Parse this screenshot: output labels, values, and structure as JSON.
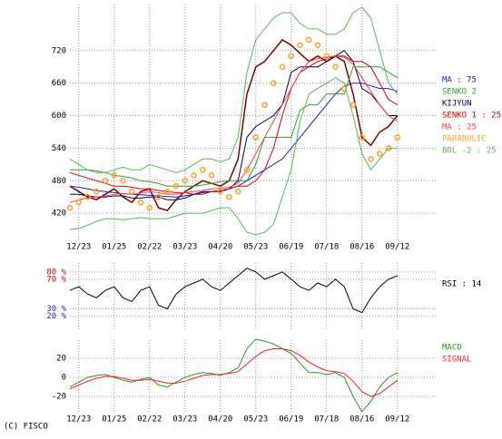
{
  "footer": "(C) FISCO",
  "chart_data": [
    {
      "type": "line",
      "categories": [
        null,
        "12/23",
        null,
        null,
        null,
        "01/25",
        null,
        null,
        null,
        "02/22",
        null,
        null,
        null,
        "03/23",
        null,
        null,
        null,
        "04/20",
        null,
        null,
        null,
        "05/23",
        null,
        null,
        null,
        "06/19",
        null,
        null,
        null,
        "07/18",
        null,
        null,
        null,
        "08/16",
        null,
        null,
        null,
        "09/12"
      ],
      "ylim": [
        370,
        805
      ],
      "yticks": [
        420,
        480,
        540,
        600,
        660,
        720
      ],
      "grid": true,
      "series": [
        {
          "color": "#800000",
          "values": [
            470,
            460,
            450,
            445,
            455,
            465,
            450,
            440,
            460,
            465,
            430,
            425,
            445,
            460,
            470,
            480,
            475,
            470,
            480,
            520,
            640,
            690,
            700,
            720,
            740,
            730,
            715,
            700,
            710,
            700,
            710,
            700,
            640,
            560,
            545,
            570,
            580,
            600
          ]
        },
        {
          "name": "MA : 75",
          "color": "#2020c0",
          "values": [
            470,
            468,
            465,
            462,
            460,
            458,
            456,
            455,
            454,
            453,
            452,
            451,
            450,
            452,
            455,
            458,
            460,
            462,
            465,
            470,
            480,
            490,
            500,
            510,
            520,
            540,
            560,
            580,
            600,
            620,
            640,
            655,
            660,
            660,
            655,
            650,
            650,
            645
          ]
        },
        {
          "name": "SENKO 2",
          "color": "#30a030",
          "values": [
            500,
            500,
            500,
            498,
            495,
            490,
            488,
            485,
            480,
            478,
            475,
            470,
            470,
            470,
            470,
            472,
            475,
            478,
            480,
            480,
            480,
            510,
            560,
            560,
            560,
            560,
            610,
            620,
            620,
            640,
            640,
            640,
            690,
            690,
            690,
            690,
            680,
            670
          ]
        },
        {
          "name": "KIJYUN",
          "color": "#000060",
          "values": [
            455,
            455,
            452,
            450,
            450,
            452,
            452,
            448,
            448,
            450,
            450,
            445,
            445,
            448,
            455,
            460,
            460,
            460,
            465,
            480,
            560,
            580,
            590,
            600,
            620,
            680,
            690,
            690,
            690,
            700,
            710,
            720,
            700,
            650,
            640,
            620,
            600,
            600
          ]
        },
        {
          "name": "SENKO 1 : 25",
          "color": "#e00000",
          "values": [
            495,
            490,
            485,
            480,
            475,
            470,
            470,
            468,
            465,
            465,
            462,
            460,
            458,
            458,
            455,
            455,
            460,
            462,
            465,
            470,
            470,
            480,
            500,
            540,
            600,
            650,
            680,
            690,
            700,
            705,
            710,
            710,
            700,
            700,
            690,
            660,
            630,
            620
          ]
        },
        {
          "name": "MA : 25",
          "color": "#ff4040",
          "values": [
            440,
            445,
            448,
            450,
            452,
            455,
            456,
            455,
            457,
            460,
            458,
            455,
            455,
            458,
            460,
            462,
            465,
            466,
            468,
            475,
            500,
            530,
            560,
            590,
            620,
            650,
            680,
            700,
            705,
            708,
            710,
            708,
            695,
            670,
            645,
            620,
            600,
            590
          ]
        },
        {
          "name": "PARABOLIC",
          "color": "#ffa020",
          "style": "dots",
          "values": [
            430,
            440,
            450,
            460,
            480,
            490,
            480,
            460,
            440,
            430,
            450,
            460,
            470,
            480,
            490,
            500,
            490,
            460,
            450,
            460,
            500,
            560,
            620,
            660,
            690,
            710,
            730,
            740,
            730,
            710,
            690,
            650,
            620,
            560,
            520,
            530,
            540,
            560
          ]
        },
        {
          "color": "#50c050",
          "values": [
            520,
            510,
            500,
            495,
            495,
            500,
            505,
            500,
            500,
            510,
            505,
            500,
            495,
            500,
            510,
            520,
            520,
            515,
            520,
            560,
            680,
            740,
            760,
            780,
            790,
            790,
            770,
            760,
            760,
            750,
            750,
            760,
            790,
            800,
            780,
            720,
            660,
            640
          ]
        },
        {
          "name": "BOL -2 : 25",
          "color": "#50c050",
          "values": [
            390,
            392,
            398,
            405,
            410,
            410,
            408,
            410,
            412,
            410,
            410,
            410,
            415,
            420,
            420,
            420,
            425,
            430,
            430,
            410,
            385,
            380,
            385,
            400,
            450,
            500,
            590,
            640,
            650,
            660,
            670,
            660,
            600,
            530,
            500,
            520,
            540,
            540
          ]
        }
      ]
    },
    {
      "type": "line",
      "ylim": [
        0,
        92
      ],
      "yticks": [
        {
          "value": 80,
          "label": "80 %"
        },
        {
          "value": 70,
          "label": "70 %"
        },
        {
          "value": 30,
          "label": "30 %"
        },
        {
          "value": 20,
          "label": "20 %"
        }
      ],
      "ytick_colors": [
        "#e00000",
        "#e00000",
        "#2020e0",
        "#2020e0"
      ],
      "series": [
        {
          "name": "RSI : 14",
          "color": "#000000",
          "values": [
            55,
            60,
            50,
            45,
            55,
            60,
            45,
            40,
            55,
            60,
            35,
            30,
            50,
            60,
            65,
            70,
            60,
            55,
            65,
            75,
            85,
            80,
            70,
            75,
            80,
            70,
            60,
            55,
            65,
            60,
            70,
            60,
            30,
            25,
            45,
            60,
            70,
            75
          ]
        }
      ]
    },
    {
      "type": "line",
      "categories": [
        null,
        "12/23",
        null,
        null,
        null,
        "01/25",
        null,
        null,
        null,
        "02/22",
        null,
        null,
        null,
        "03/23",
        null,
        null,
        null,
        "04/20",
        null,
        null,
        null,
        "05/23",
        null,
        null,
        null,
        "06/19",
        null,
        null,
        null,
        "07/18",
        null,
        null,
        null,
        "08/16",
        null,
        null,
        null,
        "09/12"
      ],
      "ylim": [
        -37,
        39
      ],
      "yticks": [
        20,
        0,
        -20
      ],
      "grid": true,
      "series": [
        {
          "name": "MACD",
          "color": "#20a020",
          "values": [
            -10,
            -5,
            0,
            2,
            3,
            0,
            -3,
            -5,
            -2,
            0,
            -8,
            -10,
            -5,
            0,
            3,
            5,
            4,
            2,
            5,
            10,
            30,
            40,
            38,
            35,
            30,
            25,
            15,
            5,
            5,
            3,
            5,
            0,
            -20,
            -36,
            -25,
            -10,
            0,
            5
          ]
        },
        {
          "name": "SIGNAL",
          "color": "#ff2020",
          "values": [
            -12,
            -8,
            -4,
            -1,
            1,
            1,
            -1,
            -3,
            -3,
            -2,
            -4,
            -6,
            -6,
            -4,
            -1,
            2,
            3,
            3,
            4,
            6,
            14,
            22,
            28,
            30,
            30,
            28,
            23,
            16,
            11,
            7,
            6,
            4,
            -4,
            -15,
            -20,
            -17,
            -10,
            -3
          ]
        }
      ]
    }
  ]
}
